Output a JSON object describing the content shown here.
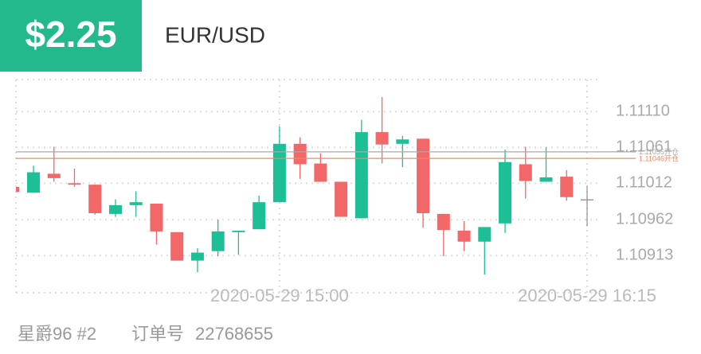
{
  "header": {
    "amount": "$2.25",
    "symbol": "EUR/USD"
  },
  "chart_data": {
    "type": "candlestick",
    "categories": [
      null,
      null,
      null,
      null,
      null,
      null,
      null,
      null,
      null,
      null,
      null,
      null,
      null,
      "2020-05-29 15:00",
      null,
      null,
      null,
      null,
      null,
      null,
      null,
      null,
      null,
      null,
      null,
      null,
      null,
      null,
      "2020-05-29 16:15"
    ],
    "open": [
      1.11007,
      1.10999,
      1.11025,
      1.11012,
      1.1101,
      1.1097,
      1.10982,
      1.10984,
      1.10945,
      1.10906,
      1.10919,
      1.10945,
      1.10949,
      1.10986,
      1.11066,
      1.11039,
      1.11014,
      1.10964,
      1.11082,
      1.11066,
      1.11073,
      1.1097,
      1.10947,
      1.10932,
      1.10957,
      1.11038,
      1.11014,
      1.11021,
      1.1099
    ],
    "high": [
      1.11007,
      1.11036,
      1.11062,
      1.11032,
      1.1101,
      1.1099,
      1.11001,
      1.10984,
      1.10945,
      1.10923,
      1.10962,
      1.10947,
      1.10995,
      1.1109,
      1.11075,
      1.11053,
      1.11014,
      1.11099,
      1.1113,
      1.11077,
      1.11073,
      1.1097,
      1.1096,
      1.10952,
      1.11058,
      1.11062,
      1.11061,
      1.1103,
      1.11008
    ],
    "low": [
      1.11,
      1.10999,
      1.11014,
      1.11007,
      1.10969,
      1.10966,
      1.10966,
      1.10928,
      1.10906,
      1.1089,
      1.10912,
      1.10914,
      1.10949,
      1.10986,
      1.11018,
      1.11014,
      1.10966,
      1.10964,
      1.11039,
      1.11034,
      1.10951,
      1.10912,
      1.10919,
      1.10887,
      1.10944,
      1.10991,
      1.11014,
      1.10988,
      1.10953
    ],
    "close": [
      1.11,
      1.11027,
      1.11019,
      1.1101,
      1.10971,
      1.10982,
      1.10986,
      1.10946,
      1.10906,
      1.10917,
      1.10946,
      1.10947,
      1.10986,
      1.11066,
      1.11038,
      1.11014,
      1.10966,
      1.11082,
      1.11065,
      1.11072,
      1.10971,
      1.10948,
      1.10932,
      1.10952,
      1.11041,
      1.11015,
      1.1102,
      1.10993,
      1.1099
    ],
    "colors": {
      "up": "#1dbf97",
      "down": "#f26767",
      "flat": "#999999"
    },
    "ylim": [
      1.10862,
      1.11154
    ],
    "yticks": [
      {
        "value": 1.1111,
        "label": "1.11110"
      },
      1.11061,
      1.11012,
      1.10962,
      1.10913
    ],
    "grid": true,
    "lines": [
      {
        "value": 1.11055,
        "label": "1.11055开仓",
        "color": "#aaaaaa"
      },
      {
        "value": 1.11046,
        "label": "1.11046开仓",
        "color": "#f08a5d"
      }
    ]
  },
  "footer": {
    "account": "星爵96 #2",
    "order_label": "订单号",
    "order_number": 22768655
  }
}
